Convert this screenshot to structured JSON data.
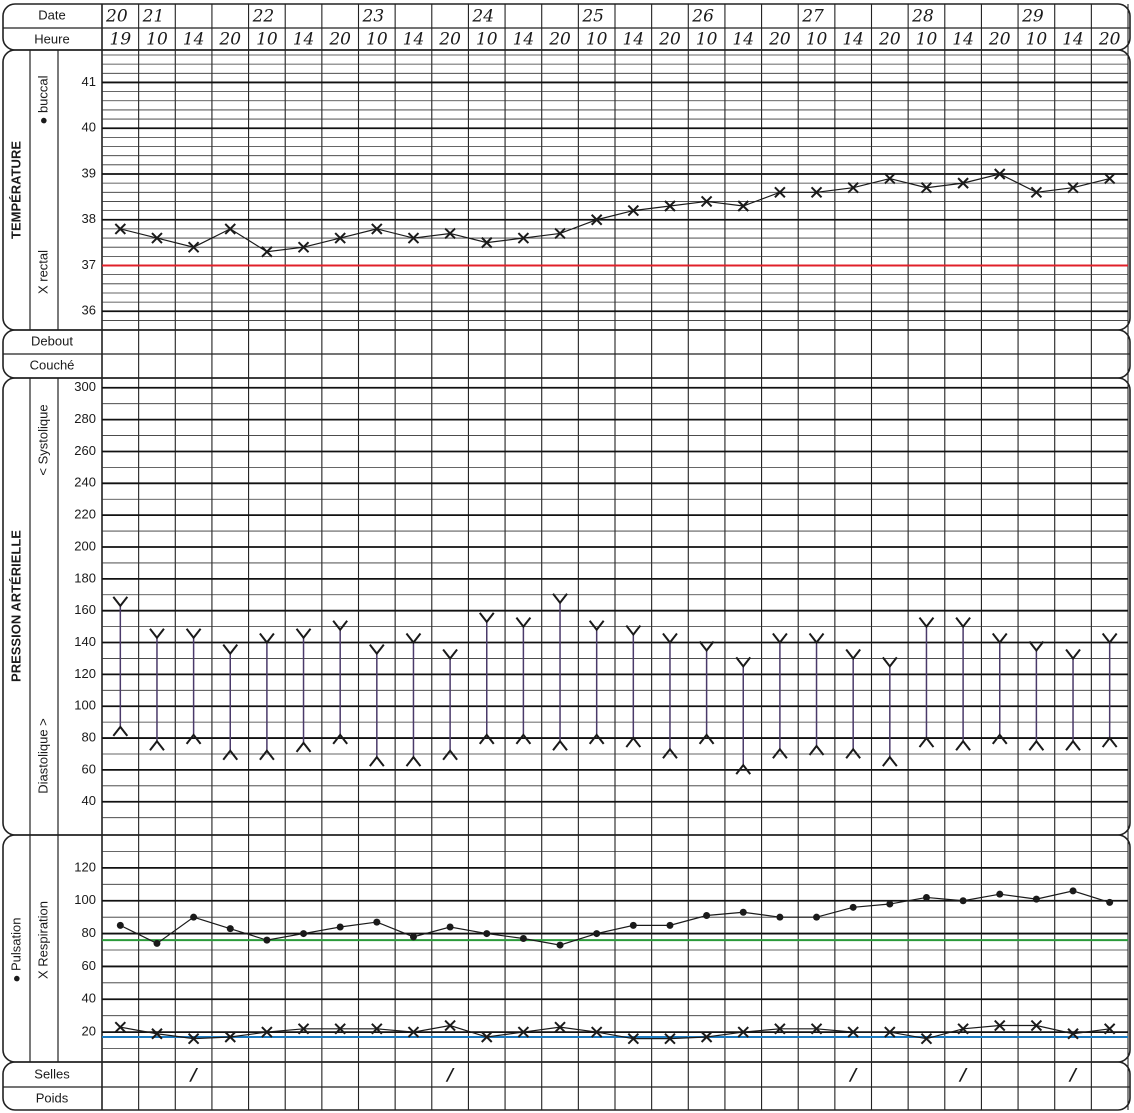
{
  "header": {
    "date_label": "Date",
    "time_label": "Heure",
    "dates": [
      "20",
      "21",
      null,
      null,
      "22",
      null,
      null,
      "23",
      null,
      null,
      "24",
      null,
      null,
      "25",
      null,
      null,
      "26",
      null,
      null,
      "27",
      null,
      null,
      "28",
      null,
      null,
      "29",
      null,
      null
    ],
    "times": [
      "19",
      "10",
      "14",
      "20",
      "10",
      "14",
      "20",
      "10",
      "14",
      "20",
      "10",
      "14",
      "20",
      "10",
      "14",
      "20",
      "10",
      "14",
      "20",
      "10",
      "14",
      "20",
      "10",
      "14",
      "20",
      "10",
      "14",
      "20"
    ]
  },
  "positions": {
    "standing": "Debout",
    "lying": "Couché"
  },
  "footer": {
    "stools_label": "Selles",
    "weight_label": "Poids",
    "stools": [
      null,
      null,
      "/",
      null,
      null,
      null,
      null,
      null,
      null,
      "/",
      null,
      null,
      null,
      null,
      null,
      null,
      null,
      null,
      null,
      null,
      "/",
      null,
      null,
      "/",
      null,
      null,
      "/",
      null
    ]
  },
  "chart_data": [
    {
      "type": "line",
      "title": "TEMPÉRATURE",
      "legend": [
        {
          "label": "● buccal",
          "color": "#e0202a"
        },
        {
          "label": "X rectal",
          "color": "#e0202a"
        }
      ],
      "series": [
        {
          "color": "#1a1a1a",
          "marker": "x",
          "values": [
            37.8,
            37.6,
            37.4,
            37.8,
            37.3,
            37.4,
            37.6,
            37.8,
            37.6,
            37.7,
            37.5,
            37.6,
            37.7,
            38.0,
            38.2,
            38.3,
            38.4,
            38.3,
            38.6,
            38.6,
            38.7,
            38.9,
            38.7,
            38.8,
            39.0,
            38.6,
            38.7,
            38.9
          ]
        }
      ],
      "reference_lines": [
        {
          "value": 37,
          "color": "#e0202a"
        }
      ],
      "ylim": [
        35.7,
        41.6
      ],
      "yticks": [
        36,
        37,
        38,
        39,
        40,
        41
      ],
      "grid": true
    },
    {
      "type": "range",
      "title": "PRESSION ARTÉRIELLE",
      "series": [
        {
          "name": "< Systolique",
          "color": "#1a1a1a",
          "marker": "v",
          "values": [
            163,
            143,
            143,
            133,
            140,
            143,
            148,
            133,
            140,
            130,
            153,
            150,
            165,
            148,
            145,
            140,
            135,
            125,
            140,
            140,
            130,
            125,
            150,
            150,
            140,
            135,
            130,
            140
          ]
        },
        {
          "name": "Diastolique >",
          "color": "#1a1a1a",
          "marker": "^",
          "values": [
            87,
            78,
            82,
            72,
            72,
            77,
            82,
            68,
            68,
            72,
            82,
            82,
            78,
            82,
            80,
            73,
            82,
            63,
            73,
            75,
            73,
            68,
            80,
            78,
            82,
            78,
            78,
            80
          ]
        }
      ],
      "range_color": "#4a3a6a",
      "ylim": [
        21,
        303
      ],
      "yticks": [
        40,
        60,
        80,
        100,
        120,
        140,
        160,
        180,
        200,
        220,
        240,
        260,
        280,
        300
      ],
      "grid": true
    },
    {
      "type": "line",
      "series": [
        {
          "name": "● Pulsation",
          "label_color": "#2a9a3a",
          "color": "#1a1a1a",
          "marker": "dot",
          "values": [
            85,
            74,
            90,
            83,
            76,
            80,
            84,
            87,
            78,
            84,
            80,
            77,
            73,
            80,
            85,
            85,
            91,
            93,
            90,
            90,
            96,
            98,
            102,
            100,
            104,
            101,
            106,
            99
          ]
        },
        {
          "name": "X Respiration",
          "label_color": "#1a7ac0",
          "color": "#1a1a1a",
          "marker": "x",
          "values": [
            23,
            19,
            16,
            17,
            20,
            22,
            22,
            22,
            20,
            24,
            17,
            20,
            23,
            20,
            16,
            16,
            17,
            20,
            22,
            22,
            20,
            20,
            16,
            22,
            24,
            24,
            19,
            22
          ]
        }
      ],
      "reference_lines": [
        {
          "value": 76,
          "color": "#2a9a3a"
        },
        {
          "value": 17,
          "color": "#1a7ac0"
        }
      ],
      "ylim": [
        3,
        137
      ],
      "yticks": [
        20,
        40,
        60,
        80,
        100,
        120
      ],
      "grid": true
    }
  ]
}
